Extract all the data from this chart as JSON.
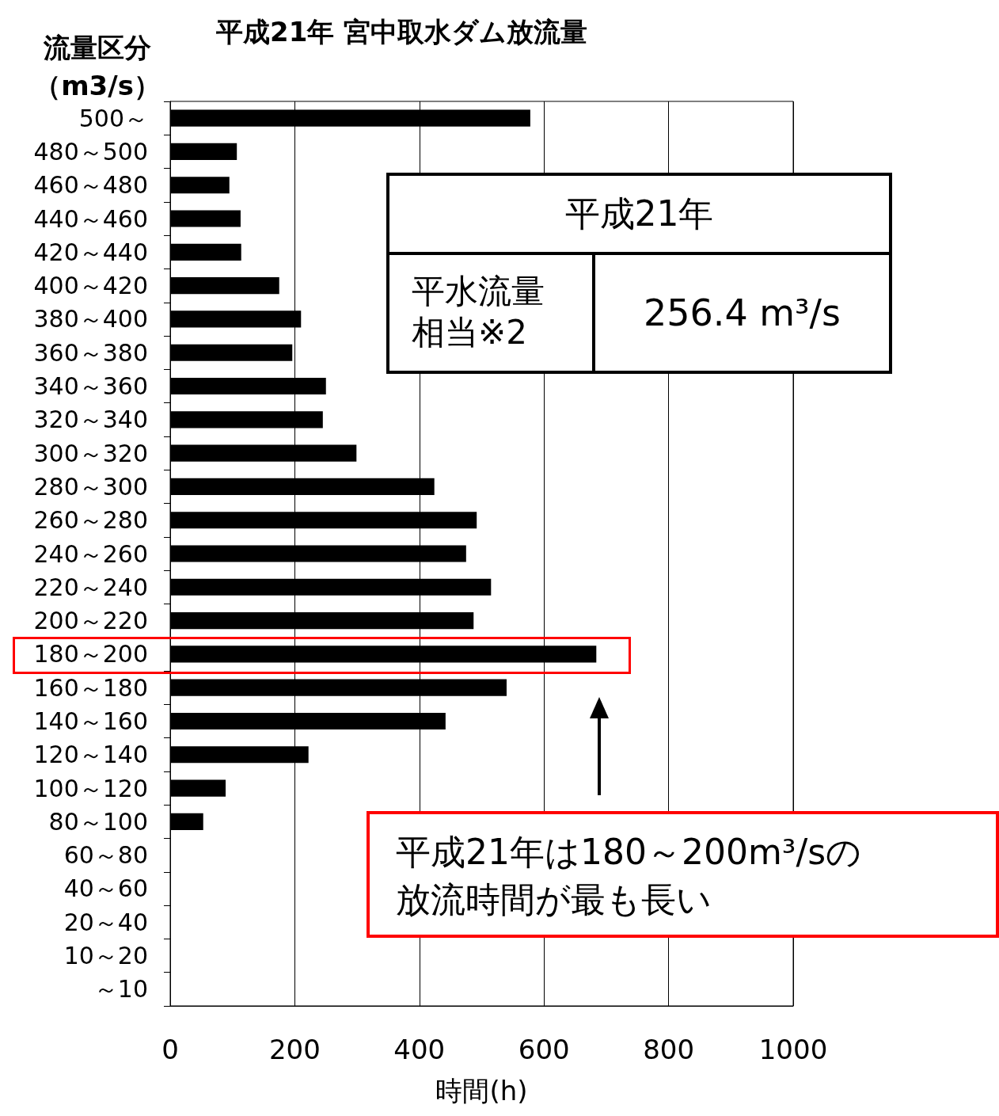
{
  "chart_data": {
    "type": "bar",
    "orientation": "horizontal",
    "title": "平成21年 宮中取水ダム放流量",
    "xlabel": "時間(h)",
    "ylabel": "流量区分（m3/s）",
    "categories": [
      "500～",
      "480～500",
      "460～480",
      "440～460",
      "420～440",
      "400～420",
      "380～400",
      "360～380",
      "340～360",
      "320～340",
      "300～320",
      "280～300",
      "260～280",
      "240～260",
      "220～240",
      "200～220",
      "180～200",
      "160～180",
      "140～160",
      "120～140",
      "100～120",
      "80～100",
      "60～80",
      "40～60",
      "20～40",
      "10～20",
      "～10"
    ],
    "values": [
      578,
      107,
      95,
      113,
      114,
      175,
      210,
      196,
      250,
      245,
      299,
      424,
      492,
      475,
      515,
      487,
      684,
      540,
      442,
      222,
      89,
      53,
      0,
      0,
      0,
      0,
      0
    ],
    "color": "#000000",
    "xlim": [
      0,
      1000
    ],
    "xticks": [
      0,
      200,
      400,
      600,
      800,
      1000
    ],
    "grid": "x",
    "annotations": [
      "平成21年",
      "平水流量相当※2",
      "256.4 m³/s",
      "平成21年は180～200m³/sの放流時間が最も長い"
    ]
  }
}
